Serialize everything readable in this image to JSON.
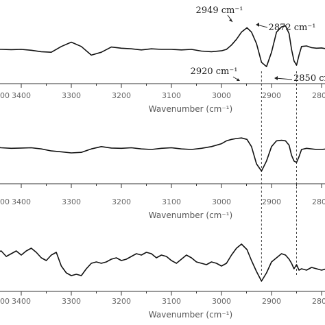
{
  "chart_data": [
    {
      "type": "line",
      "xlabel": "Wavenumber (cm⁻¹)",
      "xlim": [
        3600,
        2740
      ],
      "ticks": [
        "3400",
        "3300",
        "3200",
        "3100",
        "3000",
        "2900",
        "2800"
      ],
      "edge_tick": "00",
      "annotations": [
        {
          "text": "2949 cm⁻¹",
          "x": 2949
        },
        {
          "text": "2872 cm⁻¹",
          "x": 2872
        },
        {
          "text": "2920 cm⁻¹",
          "x": 2920
        },
        {
          "text": "2850 cm",
          "x": 2850
        }
      ],
      "series": [
        {
          "x": [
            3600,
            3580,
            3560,
            3540,
            3520,
            3500,
            3480,
            3460,
            3440,
            3420,
            3400,
            3380,
            3360,
            3340,
            3320,
            3300,
            3280,
            3260,
            3240,
            3220,
            3200,
            3180,
            3160,
            3140,
            3120,
            3100,
            3080,
            3060,
            3040,
            3020,
            3000,
            2990,
            2980,
            2970,
            2960,
            2949,
            2940,
            2930,
            2920,
            2910,
            2900,
            2890,
            2880,
            2872,
            2865,
            2860,
            2855,
            2850,
            2845,
            2840,
            2830,
            2820,
            2810,
            2800,
            2790,
            2780,
            2770,
            2760,
            2750,
            2740
          ],
          "y": [
            0.0,
            -0.03,
            -0.04,
            -0.01,
            0.0,
            -0.04,
            -0.02,
            0.0,
            0.0,
            -0.01,
            0.0,
            -0.03,
            -0.08,
            -0.1,
            0.1,
            0.25,
            0.1,
            -0.2,
            -0.1,
            0.08,
            0.04,
            0.02,
            -0.02,
            0.02,
            0.0,
            0.0,
            -0.02,
            0.0,
            -0.06,
            -0.08,
            -0.05,
            0.0,
            0.15,
            0.35,
            0.6,
            0.75,
            0.6,
            0.2,
            -0.45,
            -0.6,
            -0.1,
            0.6,
            0.78,
            0.82,
            0.55,
            0.0,
            -0.4,
            -0.55,
            -0.2,
            0.1,
            0.12,
            0.06,
            0.04,
            0.05,
            0.02,
            -0.02,
            0.0,
            0.03,
            0.02,
            0.03
          ]
        }
      ]
    },
    {
      "type": "line",
      "xlabel": "Wavenumber (cm⁻¹)",
      "xlim": [
        3600,
        2740
      ],
      "ticks": [
        "3400",
        "3300",
        "3200",
        "3100",
        "3000",
        "2900",
        "2800"
      ],
      "edge_tick": "00",
      "annotations": [],
      "series": [
        {
          "x": [
            3600,
            3580,
            3560,
            3540,
            3520,
            3500,
            3480,
            3460,
            3440,
            3420,
            3400,
            3380,
            3360,
            3340,
            3320,
            3300,
            3280,
            3260,
            3240,
            3220,
            3200,
            3180,
            3160,
            3140,
            3120,
            3100,
            3080,
            3060,
            3040,
            3020,
            3000,
            2990,
            2980,
            2970,
            2960,
            2949,
            2940,
            2930,
            2920,
            2910,
            2900,
            2890,
            2880,
            2872,
            2865,
            2860,
            2855,
            2850,
            2845,
            2840,
            2830,
            2820,
            2810,
            2800,
            2790,
            2780,
            2770,
            2760,
            2750,
            2740
          ],
          "y": [
            0.0,
            0.02,
            0.0,
            -0.05,
            0.0,
            0.05,
            0.08,
            0.1,
            0.06,
            0.04,
            0.05,
            0.06,
            0.02,
            -0.05,
            -0.08,
            -0.12,
            -0.1,
            0.02,
            0.1,
            0.05,
            0.04,
            0.06,
            0.02,
            0.0,
            0.04,
            0.06,
            0.02,
            0.0,
            0.04,
            0.1,
            0.2,
            0.3,
            0.35,
            0.38,
            0.4,
            0.35,
            0.1,
            -0.5,
            -0.75,
            -0.4,
            0.1,
            0.3,
            0.32,
            0.3,
            0.15,
            -0.2,
            -0.4,
            -0.45,
            -0.25,
            0.0,
            0.04,
            0.02,
            0.0,
            0.0,
            0.02,
            0.03,
            0.02,
            0.0,
            0.03,
            0.05
          ]
        }
      ]
    },
    {
      "type": "line",
      "xlabel": "Wavenumber (cm⁻¹)",
      "xlim": [
        3600,
        2740
      ],
      "ticks": [
        "3400",
        "3300",
        "3200",
        "3100",
        "3000",
        "2900",
        "2800"
      ],
      "edge_tick": "00",
      "annotations": [],
      "series": [
        {
          "x": [
            3600,
            3590,
            3580,
            3570,
            3560,
            3550,
            3540,
            3530,
            3520,
            3510,
            3500,
            3490,
            3480,
            3470,
            3460,
            3450,
            3440,
            3430,
            3420,
            3410,
            3400,
            3390,
            3380,
            3370,
            3360,
            3350,
            3340,
            3330,
            3320,
            3310,
            3300,
            3290,
            3280,
            3270,
            3260,
            3250,
            3240,
            3230,
            3220,
            3210,
            3200,
            3190,
            3180,
            3170,
            3160,
            3150,
            3140,
            3130,
            3120,
            3110,
            3100,
            3090,
            3080,
            3070,
            3060,
            3050,
            3040,
            3030,
            3020,
            3010,
            3000,
            2990,
            2980,
            2970,
            2960,
            2949,
            2940,
            2930,
            2920,
            2910,
            2900,
            2890,
            2880,
            2872,
            2865,
            2860,
            2855,
            2850,
            2845,
            2840,
            2830,
            2820,
            2810,
            2800,
            2790,
            2780,
            2770,
            2760,
            2750,
            2740
          ],
          "y": [
            -0.7,
            -0.55,
            -0.5,
            -0.3,
            -0.25,
            -0.2,
            -0.1,
            0.05,
            0.1,
            0.0,
            -0.05,
            -0.15,
            -0.05,
            0.1,
            0.2,
            0.3,
            0.35,
            0.15,
            0.25,
            0.35,
            0.2,
            0.35,
            0.45,
            0.3,
            0.1,
            0.0,
            0.2,
            0.3,
            -0.2,
            -0.45,
            -0.55,
            -0.5,
            -0.55,
            -0.3,
            -0.1,
            -0.05,
            -0.1,
            -0.05,
            0.05,
            0.1,
            0.0,
            0.05,
            0.15,
            0.25,
            0.2,
            0.3,
            0.25,
            0.1,
            0.2,
            0.15,
            0.0,
            -0.1,
            0.05,
            0.2,
            0.1,
            -0.05,
            -0.1,
            -0.15,
            -0.05,
            -0.1,
            -0.2,
            -0.1,
            0.2,
            0.45,
            0.6,
            0.4,
            0.0,
            -0.4,
            -0.75,
            -0.45,
            -0.05,
            0.1,
            0.25,
            0.2,
            0.05,
            -0.1,
            -0.3,
            -0.15,
            -0.35,
            -0.3,
            -0.35,
            -0.25,
            -0.3,
            -0.35,
            -0.3,
            -0.35,
            -0.3,
            -0.35,
            -0.3,
            -0.35
          ]
        }
      ]
    }
  ],
  "marker_lines": [
    2920,
    2850
  ]
}
